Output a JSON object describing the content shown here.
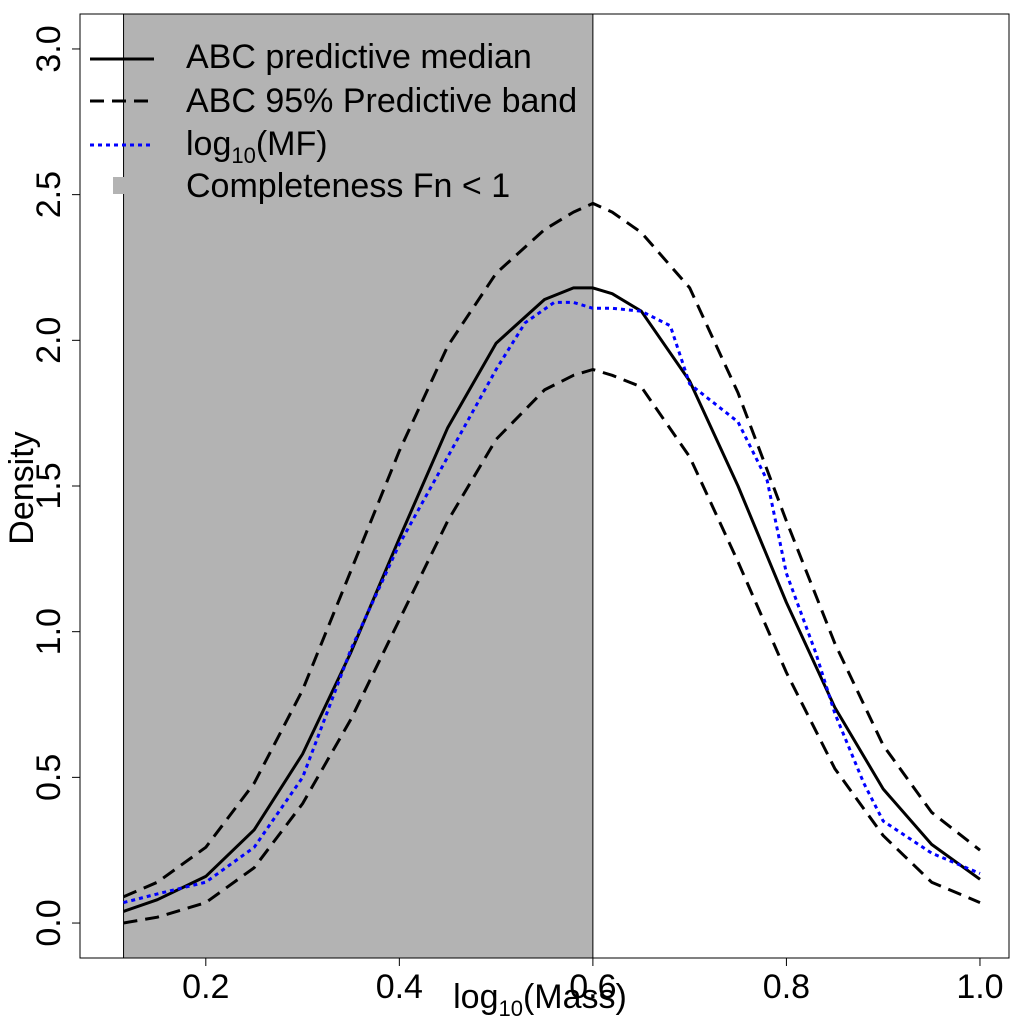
{
  "chart_data": {
    "type": "line",
    "title": "",
    "xlabel_base": "log",
    "xlabel_sub": "10",
    "xlabel_rest": "(Mass)",
    "ylabel": "Density",
    "xlim": [
      0.07,
      1.03
    ],
    "ylim": [
      -0.12,
      3.12
    ],
    "xticks": [
      "0.2",
      "0.4",
      "0.6",
      "0.8",
      "1.0"
    ],
    "xtick_values": [
      0.2,
      0.4,
      0.6,
      0.8,
      1.0
    ],
    "yticks": [
      "0.0",
      "0.5",
      "1.0",
      "1.5",
      "2.0",
      "2.5",
      "3.0"
    ],
    "ytick_values": [
      0.0,
      0.5,
      1.0,
      1.5,
      2.0,
      2.5,
      3.0
    ],
    "shaded_region": {
      "x0": 0.115,
      "x1": 0.6,
      "color": "#b3b3b3",
      "label": "Completeness Fn < 1"
    },
    "legend_position": "top-left",
    "series": [
      {
        "name": "ABC predictive median",
        "style": "solid",
        "color": "#000000",
        "x": [
          0.115,
          0.15,
          0.2,
          0.25,
          0.3,
          0.35,
          0.4,
          0.45,
          0.5,
          0.55,
          0.58,
          0.6,
          0.62,
          0.65,
          0.7,
          0.75,
          0.8,
          0.85,
          0.9,
          0.95,
          1.0
        ],
        "y": [
          0.04,
          0.08,
          0.16,
          0.32,
          0.58,
          0.93,
          1.32,
          1.7,
          1.99,
          2.14,
          2.18,
          2.18,
          2.16,
          2.1,
          1.86,
          1.5,
          1.1,
          0.74,
          0.46,
          0.27,
          0.15
        ]
      },
      {
        "name": "ABC 95% Predictive band",
        "style": "dashed",
        "color": "#000000",
        "x": [
          0.115,
          0.15,
          0.2,
          0.25,
          0.3,
          0.35,
          0.4,
          0.45,
          0.5,
          0.55,
          0.58,
          0.6,
          0.62,
          0.65,
          0.7,
          0.75,
          0.8,
          0.85,
          0.9,
          0.95,
          1.0
        ],
        "y": [
          0.09,
          0.14,
          0.26,
          0.48,
          0.8,
          1.21,
          1.62,
          1.98,
          2.23,
          2.38,
          2.44,
          2.47,
          2.44,
          2.37,
          2.18,
          1.82,
          1.38,
          0.96,
          0.61,
          0.38,
          0.25
        ]
      },
      {
        "name": "",
        "style": "dashed",
        "color": "#000000",
        "x": [
          0.115,
          0.15,
          0.2,
          0.25,
          0.3,
          0.35,
          0.4,
          0.45,
          0.5,
          0.55,
          0.58,
          0.6,
          0.62,
          0.65,
          0.7,
          0.75,
          0.8,
          0.85,
          0.9,
          0.95,
          1.0
        ],
        "y": [
          0.0,
          0.02,
          0.07,
          0.19,
          0.41,
          0.7,
          1.04,
          1.38,
          1.66,
          1.83,
          1.88,
          1.9,
          1.88,
          1.84,
          1.6,
          1.24,
          0.86,
          0.53,
          0.3,
          0.14,
          0.07
        ]
      },
      {
        "name": "log10(MF)",
        "style": "dotted",
        "color": "#0000ff",
        "x": [
          0.115,
          0.15,
          0.2,
          0.25,
          0.3,
          0.35,
          0.4,
          0.45,
          0.5,
          0.53,
          0.56,
          0.58,
          0.6,
          0.62,
          0.65,
          0.68,
          0.7,
          0.75,
          0.78,
          0.8,
          0.83,
          0.85,
          0.88,
          0.9,
          0.95,
          1.0
        ],
        "y": [
          0.07,
          0.1,
          0.14,
          0.26,
          0.5,
          0.94,
          1.3,
          1.6,
          1.9,
          2.06,
          2.13,
          2.13,
          2.11,
          2.11,
          2.1,
          2.05,
          1.85,
          1.72,
          1.52,
          1.2,
          0.93,
          0.72,
          0.48,
          0.35,
          0.24,
          0.17
        ]
      }
    ],
    "legend": [
      {
        "label": "ABC predictive median",
        "style": "solid"
      },
      {
        "label": "ABC 95% Predictive band",
        "style": "dashed"
      },
      {
        "label_base": "log",
        "label_sub": "10",
        "label_rest": "(MF)",
        "style": "dotted"
      },
      {
        "label": "Completeness Fn < 1",
        "style": "square"
      }
    ]
  }
}
